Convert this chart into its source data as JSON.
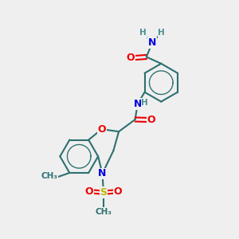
{
  "bg_color": "#efefef",
  "bond_color": "#2d7070",
  "bw": 1.5,
  "atom_colors": {
    "C": "#2d7070",
    "H": "#4a9090",
    "N": "#0000dd",
    "O": "#ee0000",
    "S": "#bbbb00"
  },
  "fs": 9.0,
  "fs_small": 7.5
}
